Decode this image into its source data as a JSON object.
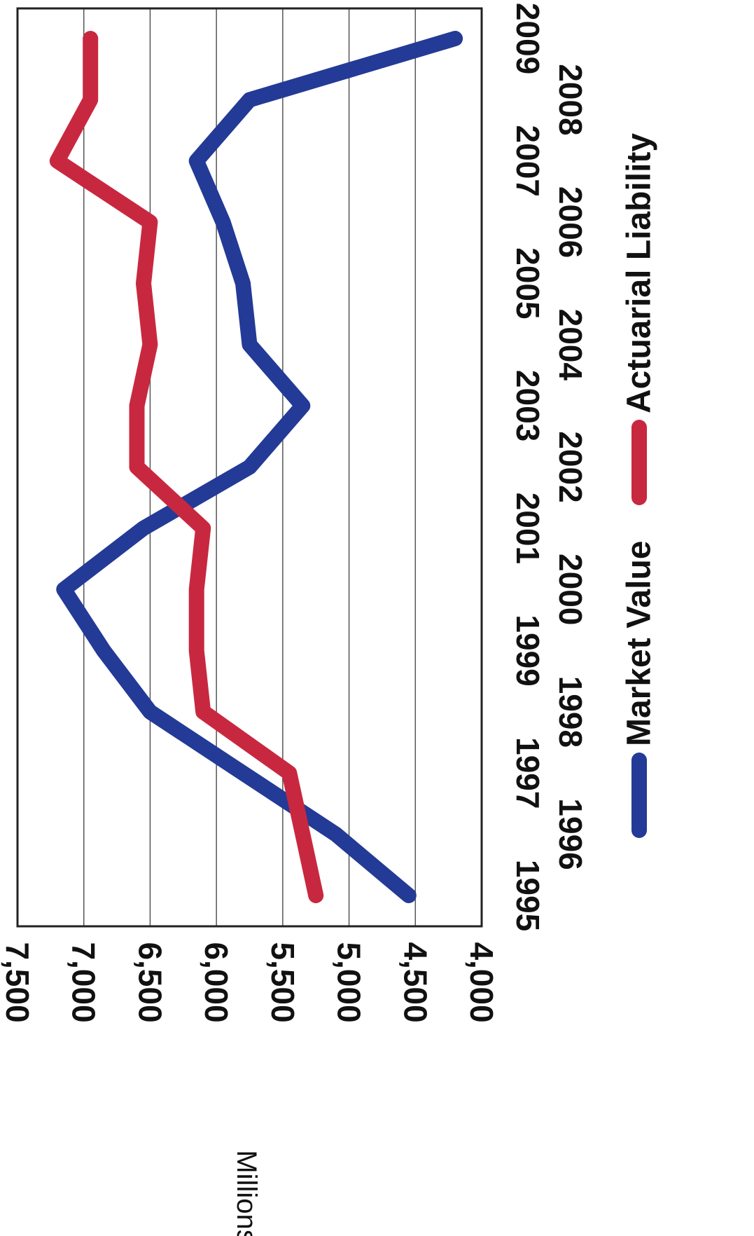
{
  "chart_data": {
    "type": "line",
    "orientation": "rotated-90-clockwise",
    "x": [
      "1995",
      "1996",
      "1997",
      "1998",
      "1999",
      "2000",
      "2001",
      "2002",
      "2003",
      "2004",
      "2005",
      "2006",
      "2007",
      "2008",
      "2009"
    ],
    "x_labels": [
      "1995",
      "1996",
      "1997",
      "1998",
      "1999",
      "2000",
      "2001",
      "2002",
      "2003",
      "2004",
      "2005",
      "2006",
      "2007",
      "2008",
      "2009"
    ],
    "series": [
      {
        "name": "Market Value",
        "color": "#233A96",
        "values": [
          4550,
          5100,
          5800,
          6500,
          6850,
          7150,
          6550,
          5750,
          5350,
          5750,
          5800,
          5950,
          6150,
          5750,
          4200
        ]
      },
      {
        "name": "Actuarial Liability",
        "color": "#C8283F",
        "values": [
          5250,
          5350,
          5450,
          6100,
          6150,
          6150,
          6100,
          6600,
          6600,
          6500,
          6550,
          6500,
          7200,
          6950,
          6950
        ]
      }
    ],
    "ylabel": "Millions",
    "ylim": [
      4000,
      7500
    ],
    "y_ticks": [
      "4,000",
      "4,500",
      "5,000",
      "5,500",
      "6,000",
      "6,500",
      "7,000",
      "7,500"
    ],
    "y_tick_values": [
      4000,
      4500,
      5000,
      5500,
      6000,
      6500,
      7000,
      7500
    ],
    "grid": true,
    "legend_position": "right",
    "title": ""
  }
}
